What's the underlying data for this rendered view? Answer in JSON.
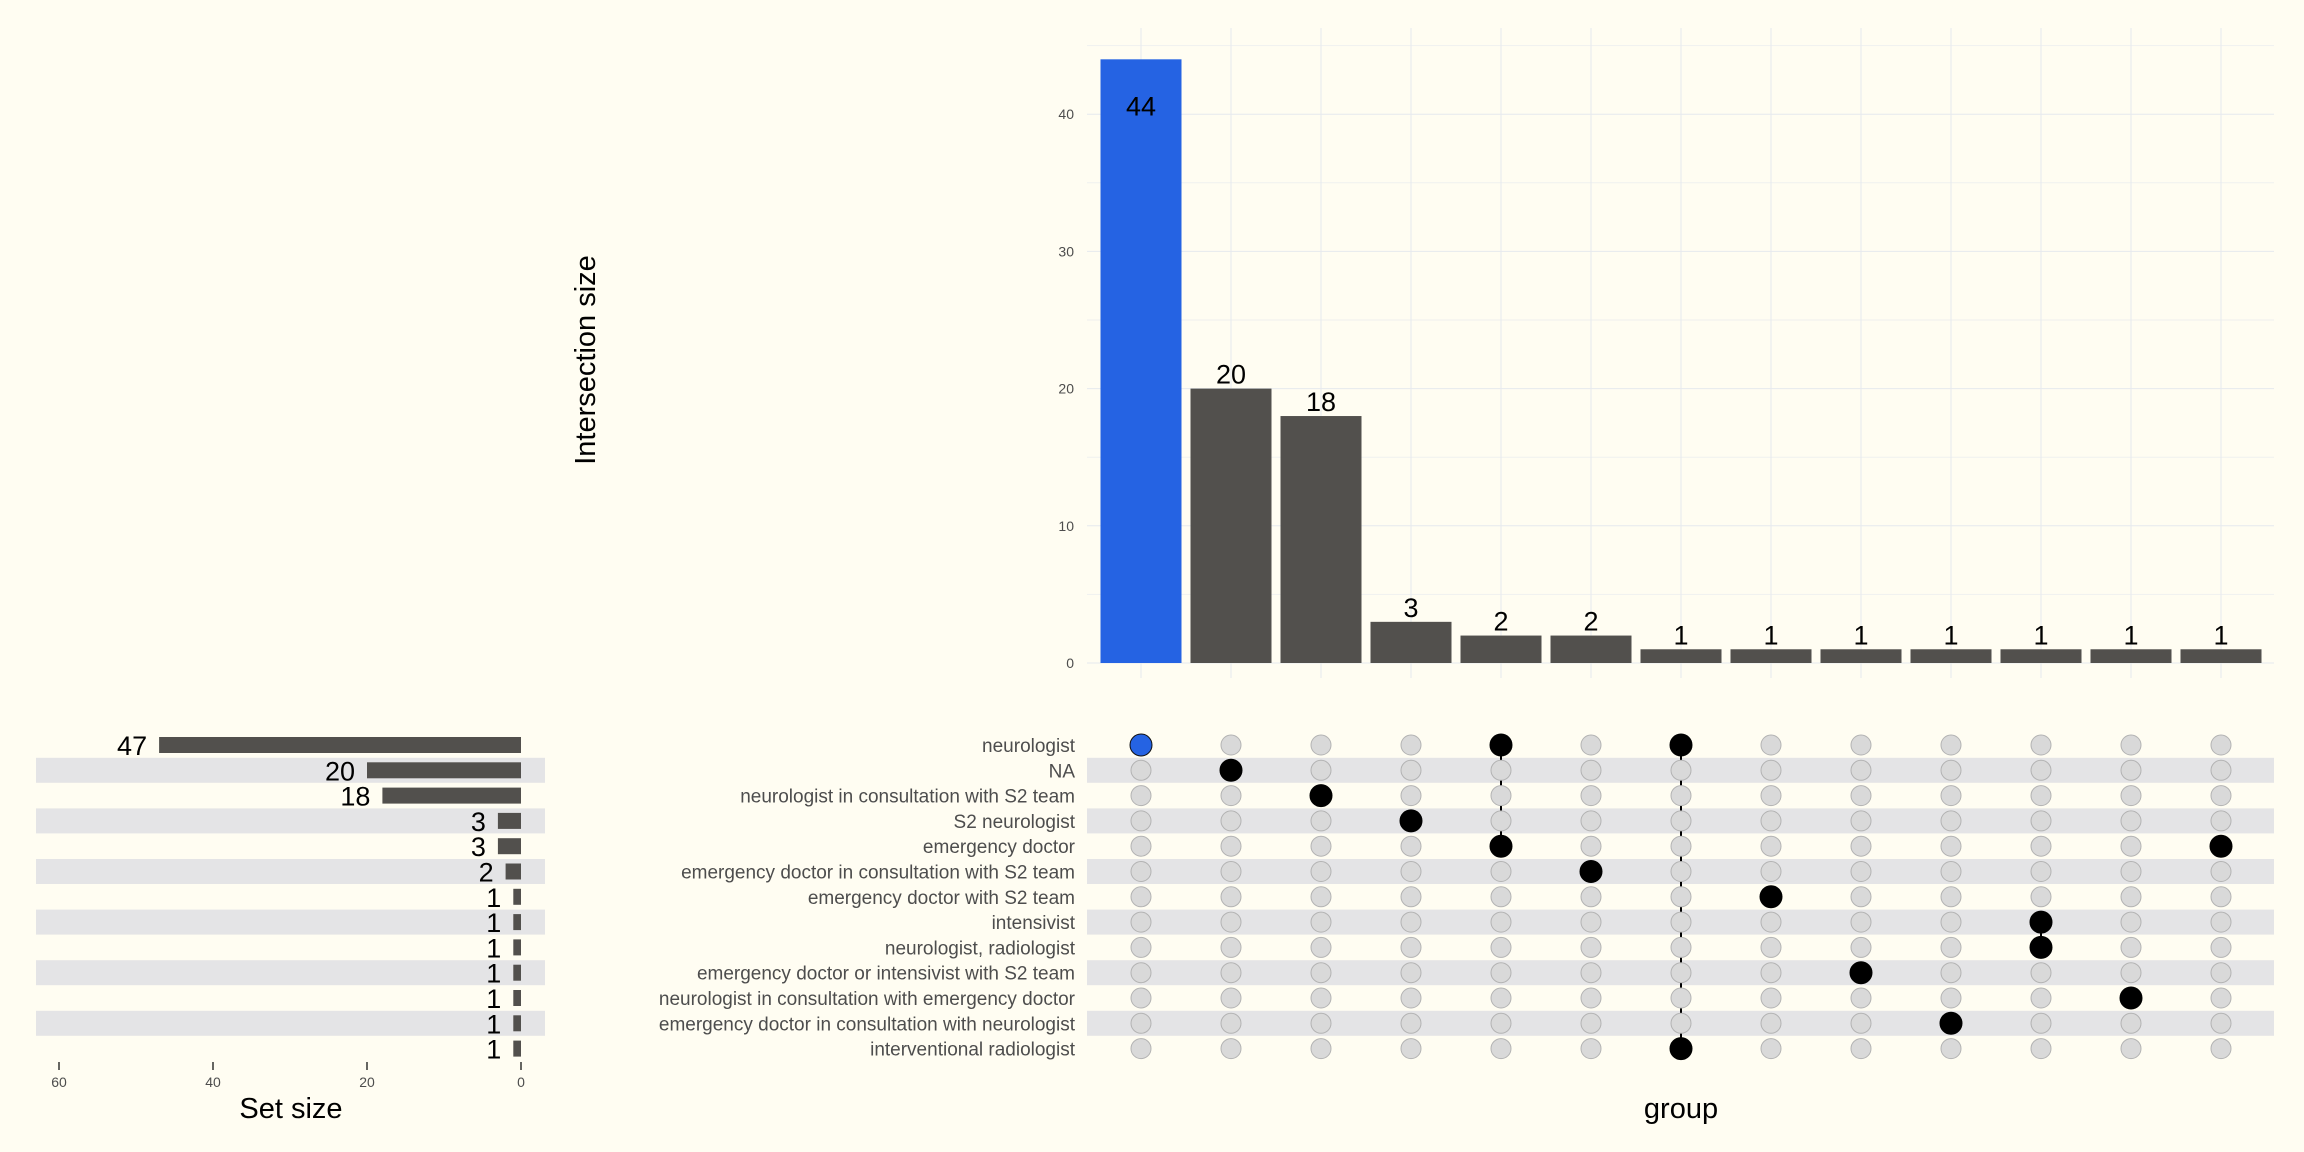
{
  "chart_data": {
    "type": "bar",
    "title": "",
    "ylabel": "Intersection size",
    "xlabel": "group",
    "set_size_label": "Set size",
    "ylim": [
      0,
      45
    ],
    "yticks": [
      0,
      10,
      20,
      30,
      40
    ],
    "sets": [
      "neurologist",
      "NA",
      "neurologist in consultation with S2 team",
      "S2 neurologist",
      "emergency doctor",
      "emergency doctor in consultation with S2 team",
      "emergency doctor with S2 team",
      "intensivist",
      "neurologist, radiologist",
      "emergency doctor or intensivist with S2 team",
      "neurologist in consultation with emergency doctor",
      "emergency doctor in consultation with neurologist",
      "interventional radiologist"
    ],
    "set_sizes": [
      47,
      20,
      18,
      3,
      3,
      2,
      1,
      1,
      1,
      1,
      1,
      1,
      1
    ],
    "set_size_xlim": [
      0,
      60
    ],
    "set_size_ticks": [
      60,
      40,
      20,
      0
    ],
    "intersections": [
      {
        "size": 44,
        "members": [
          0
        ],
        "highlight": true
      },
      {
        "size": 20,
        "members": [
          1
        ],
        "highlight": false
      },
      {
        "size": 18,
        "members": [
          2
        ],
        "highlight": false
      },
      {
        "size": 3,
        "members": [
          3
        ],
        "highlight": false
      },
      {
        "size": 2,
        "members": [
          0,
          4
        ],
        "highlight": false
      },
      {
        "size": 2,
        "members": [
          5
        ],
        "highlight": false
      },
      {
        "size": 1,
        "members": [
          0,
          12
        ],
        "highlight": false
      },
      {
        "size": 1,
        "members": [
          6
        ],
        "highlight": false
      },
      {
        "size": 1,
        "members": [
          9
        ],
        "highlight": false
      },
      {
        "size": 1,
        "members": [
          11
        ],
        "highlight": false
      },
      {
        "size": 1,
        "members": [
          7,
          8
        ],
        "highlight": false
      },
      {
        "size": 1,
        "members": [
          10
        ],
        "highlight": false
      },
      {
        "size": 1,
        "members": [
          4
        ],
        "highlight": false
      }
    ],
    "colors": {
      "bar": "#52504d",
      "highlight": "#2563e3",
      "highlight_label": "#ffffff",
      "dot_active": "#000000",
      "dot_inactive": "#d9d9d9",
      "stripe": "#e4e4e6",
      "grid": "#e6e9ee"
    }
  }
}
